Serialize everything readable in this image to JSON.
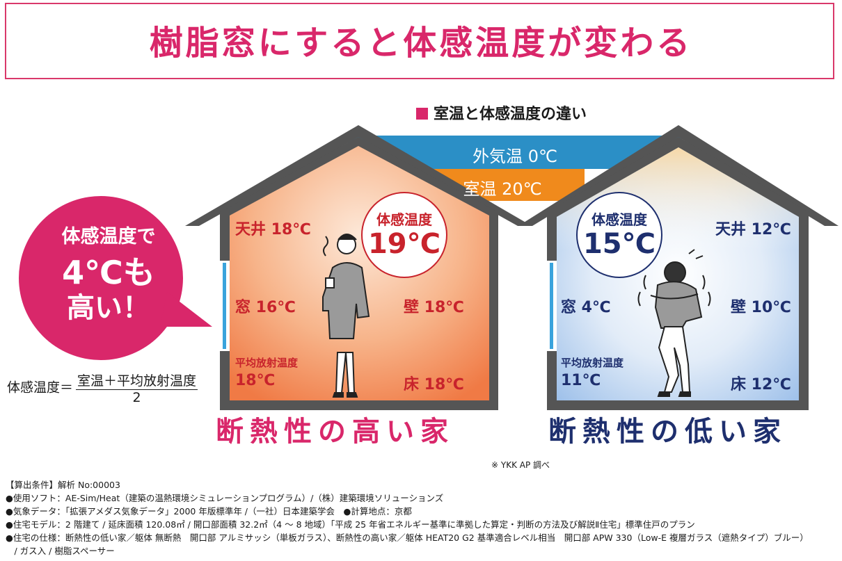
{
  "title": "樹脂窓にすると体感温度が変わる",
  "subtitle": "室温と体感温度の違い",
  "bands": {
    "outside": "外気温 0℃",
    "room": "室温 20℃"
  },
  "bubble": {
    "line1": "体感温度で",
    "line2": "4℃も",
    "line3": "高い！"
  },
  "formula": {
    "lhs": "体感温度＝",
    "numerator": "室温＋平均放射温度",
    "denominator": "2"
  },
  "high_house": {
    "label": "断熱性の高い家",
    "felt_label": "体感温度",
    "felt_value": "19℃",
    "ceiling": "天井 18℃",
    "window": "窓 16℃",
    "wall": "壁 18℃",
    "mrt_label": "平均放射温度",
    "mrt_value": "18℃",
    "floor": "床 18℃"
  },
  "low_house": {
    "label": "断熱性の低い家",
    "felt_label": "体感温度",
    "felt_value": "15℃",
    "ceiling": "天井 12℃",
    "window": "窓 4℃",
    "wall": "壁 10℃",
    "mrt_label": "平均放射温度",
    "mrt_value": "11℃",
    "floor": "床 12℃"
  },
  "source": "※ YKK AP 調べ",
  "notes": [
    "【算出条件】解析 No:00003",
    "●使用ソフト：AE-Sim/Heat（建築の温熱環境シミュレーションプログラム）/（株）建築環境ソリューションズ",
    "●気象データ：「拡張アメダス気象データ」2000 年版標準年 /（一社）日本建築学会　●計算地点：京都",
    "●住宅モデル：2 階建て / 延床面積 120.08㎡ / 開口部面積 32.2㎡（4 ～ 8 地域）「平成 25 年省エネルギー基準に準拠した算定・判断の方法及び解説Ⅱ住宅」標準住戸のプラン",
    "●住宅の仕様：断熱性の低い家／躯体 無断熱　開口部 アルミサッシ（単板ガラス）、断熱性の高い家／躯体 HEAT20 G2 基準適合レベル相当　開口部 APW 330（Low-E 複層ガラス（遮熱タイプ）ブルー）",
    "　/ ガス入 / 樹脂スペーサー"
  ],
  "colors": {
    "accent": "#d9276a",
    "warm": "#c8232c",
    "cool": "#1e2f6e",
    "outside_band": "#2b8fc6",
    "room_band": "#f08a1c",
    "house_frame": "#555555"
  }
}
